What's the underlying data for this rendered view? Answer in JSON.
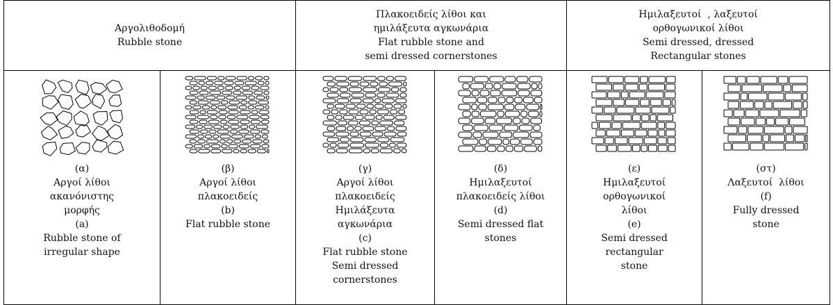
{
  "table": {
    "headers": [
      [
        "Αργολιθοδομή",
        "Rubble stone"
      ],
      [
        "Πλακοειδείς λίθοι και",
        "ημιλάξευτα αγκωνάρια",
        "Flat rubble stone and",
        "semi dressed cornerstones"
      ],
      [
        "Ημιλαξευτοί  , λαξευτοί",
        "ορθογωνικοί λίθοι",
        "Semi dressed, dressed",
        "Rectangular stones"
      ]
    ],
    "cells": [
      [
        "(α)",
        "Αργοί λίθοι",
        "ακανόνιστης",
        "μορφής",
        "(a)",
        "Rubble stone of",
        "irregular shape"
      ],
      [
        "(β)",
        "Αργοί λίθοι",
        "πλακοειδείς",
        "(b)",
        "Flat rubble stone"
      ],
      [
        "(γ)",
        "Αργοί λίθοι",
        "πλακοειδείς",
        "Ημιλάξευτα",
        "αγκωνάρια",
        "(c)",
        "Flat rubble stone",
        "Semi dressed",
        "cornerstones"
      ],
      [
        "(δ)",
        "Ημιλαξευτοί",
        "πλακοειδείς λίθοι",
        "(d)",
        "Semi dressed flat",
        "stones"
      ],
      [
        "(ε)",
        "Ημιλαξευτοί",
        "ορθογωνικοί",
        "λίθοι",
        "(e)",
        "Semi dressed",
        "rectangular",
        "stone"
      ],
      [
        "(στ)",
        "Λαξευτοί  λίθοι",
        "(f)",
        "Fully dressed",
        "stone"
      ]
    ]
  }
}
